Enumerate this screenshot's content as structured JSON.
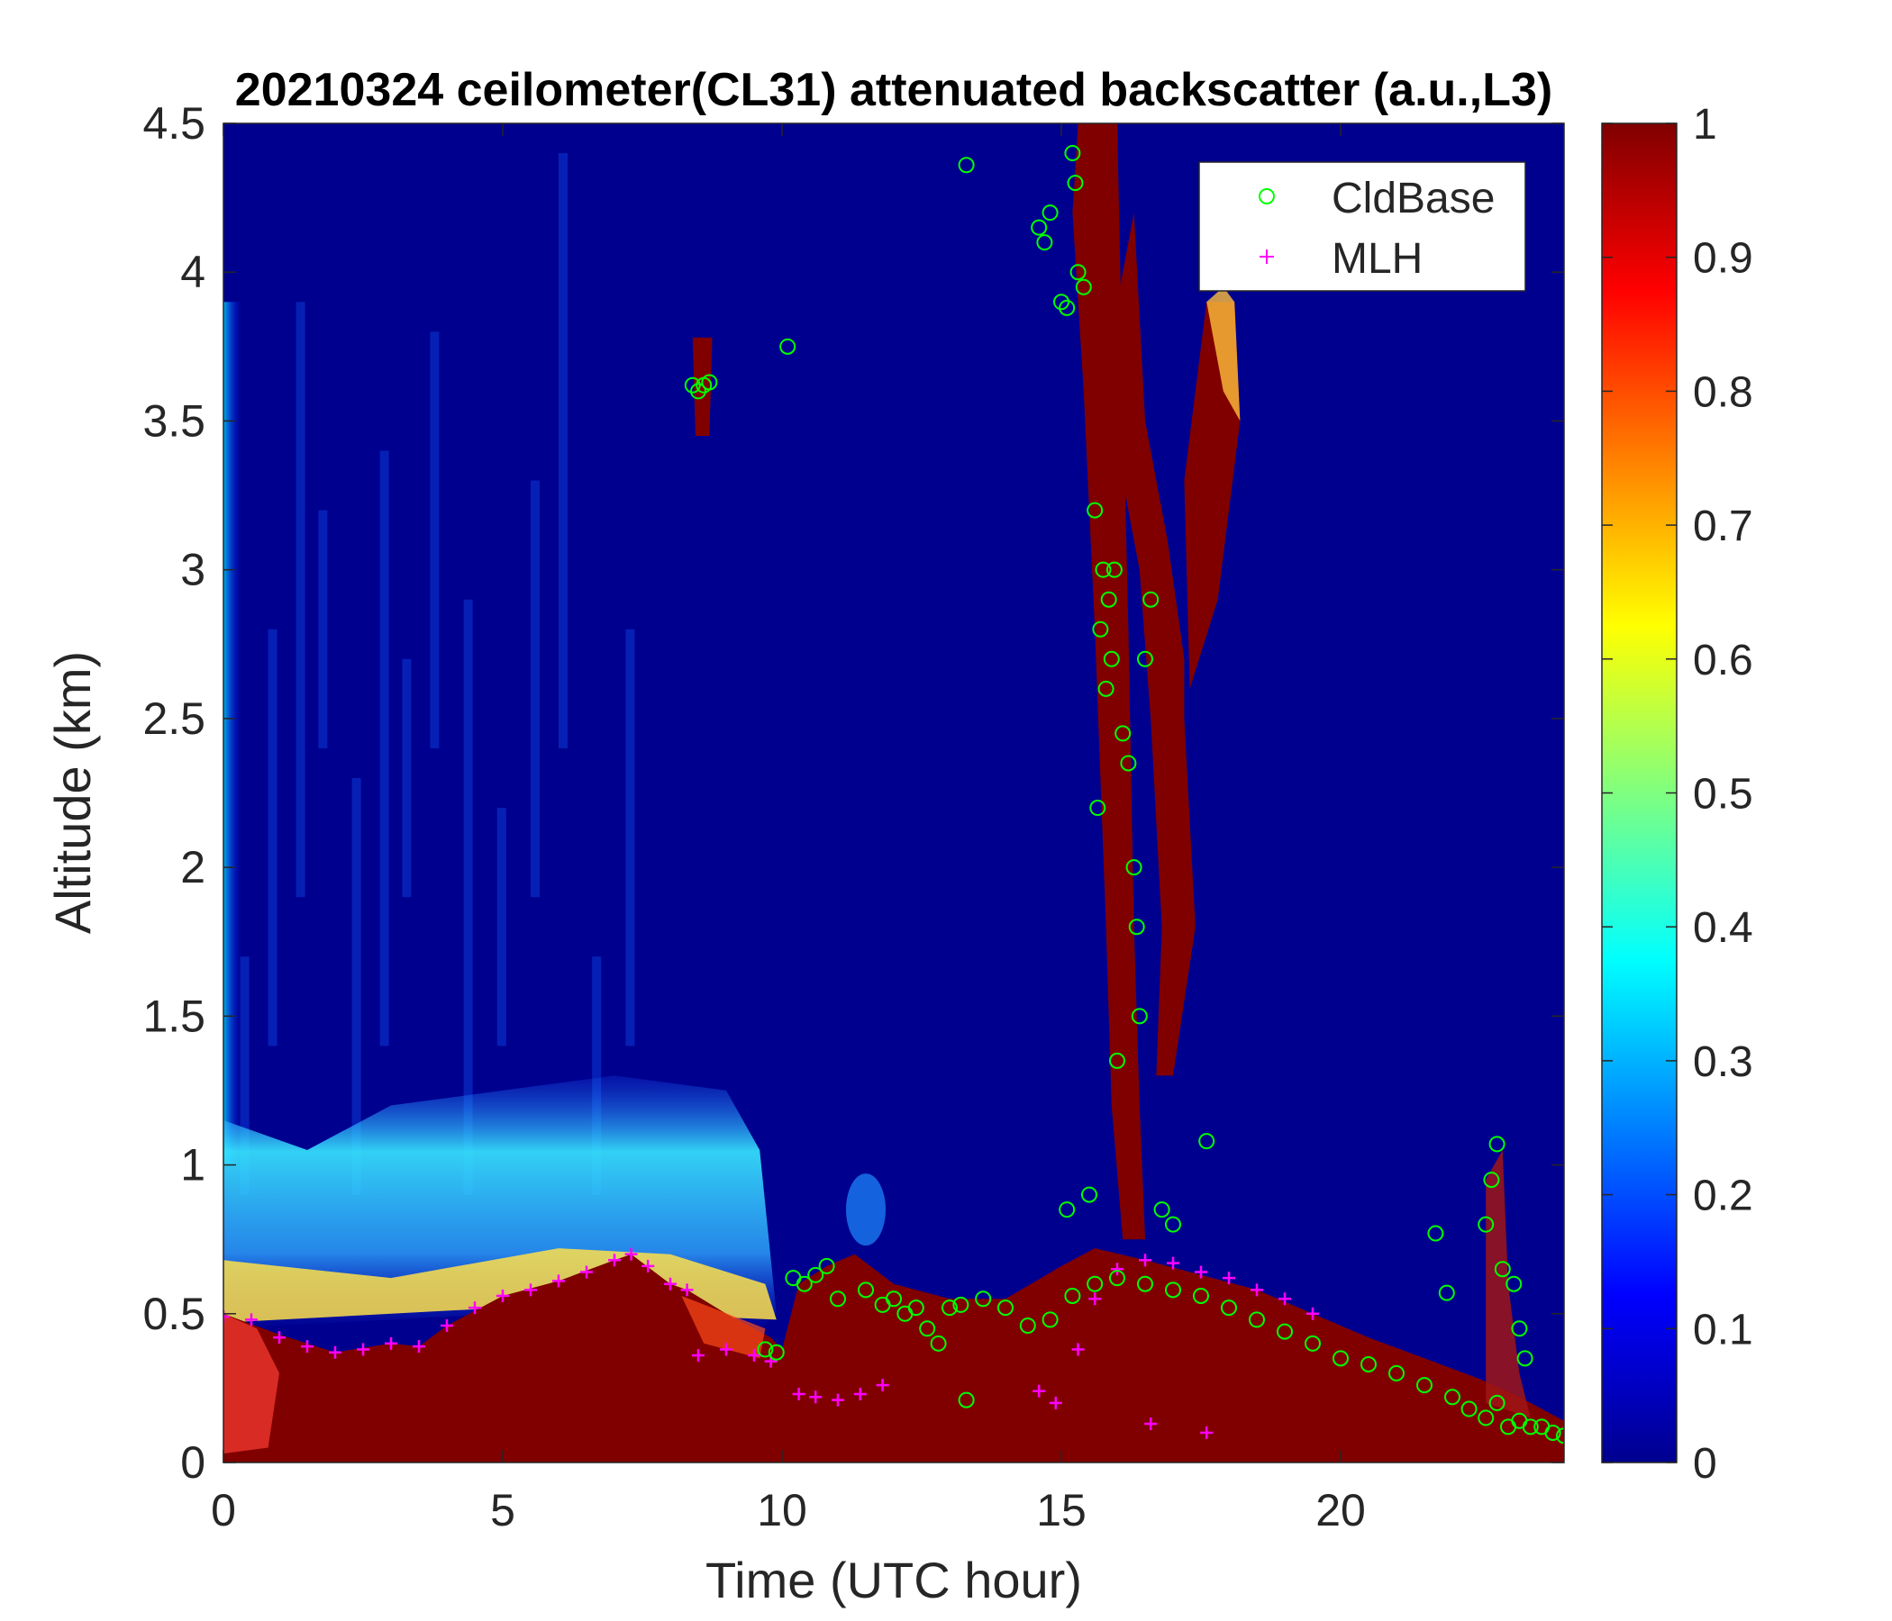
{
  "chart_data": {
    "type": "heatmap",
    "title": "20210324 ceilometer(CL31) attenuated backscatter (a.u.,L3)",
    "xlabel": "Time (UTC hour)",
    "ylabel": "Altitude (km)",
    "xlim": [
      0,
      24
    ],
    "ylim": [
      0,
      4.5
    ],
    "x_ticks": [
      "0",
      "5",
      "10",
      "15",
      "20"
    ],
    "x_tick_values": [
      0,
      5,
      10,
      15,
      20
    ],
    "y_ticks": [
      "0",
      "0.5",
      "1",
      "1.5",
      "2",
      "2.5",
      "3",
      "3.5",
      "4",
      "4.5"
    ],
    "y_tick_values": [
      0,
      0.5,
      1,
      1.5,
      2,
      2.5,
      3,
      3.5,
      4,
      4.5
    ],
    "colorbar": {
      "colormap": "jet",
      "range": [
        0,
        1
      ],
      "ticks": [
        "0",
        "0.1",
        "0.2",
        "0.3",
        "0.4",
        "0.5",
        "0.6",
        "0.7",
        "0.8",
        "0.9",
        "1"
      ],
      "tick_values": [
        0,
        0.1,
        0.2,
        0.3,
        0.4,
        0.5,
        0.6,
        0.7,
        0.8,
        0.9,
        1
      ]
    },
    "grid": false,
    "legend": {
      "placement": "top-right",
      "entries": [
        {
          "label": "CldBase",
          "marker": "circle",
          "color": "#00ff00"
        },
        {
          "label": "MLH",
          "marker": "plus",
          "color": "#ff00ff"
        }
      ]
    },
    "series": [
      {
        "name": "MLH",
        "x": [
          0,
          0.5,
          1,
          1.5,
          2,
          2.5,
          3,
          3.5,
          4,
          4.5,
          5,
          5.5,
          6,
          6.5,
          7,
          7.3,
          7.6,
          8,
          8.3,
          8.5,
          9,
          9.5,
          9.8,
          10.3,
          10.6,
          11.0,
          11.4,
          11.8,
          14.6,
          14.9,
          15.3,
          15.6,
          16.0,
          16.5,
          17.0,
          17.5,
          18.0,
          18.5,
          19.0,
          19.5,
          16.6,
          17.6
        ],
        "y": [
          0.49,
          0.48,
          0.42,
          0.39,
          0.37,
          0.38,
          0.4,
          0.39,
          0.46,
          0.52,
          0.56,
          0.58,
          0.61,
          0.64,
          0.68,
          0.7,
          0.66,
          0.6,
          0.58,
          0.36,
          0.38,
          0.36,
          0.34,
          0.23,
          0.22,
          0.21,
          0.23,
          0.26,
          0.24,
          0.2,
          0.38,
          0.55,
          0.65,
          0.68,
          0.67,
          0.64,
          0.62,
          0.58,
          0.55,
          0.5,
          0.13,
          0.1
        ]
      },
      {
        "name": "CldBase",
        "x": [
          8.4,
          8.5,
          8.6,
          8.7,
          10.1,
          13.3,
          14.6,
          14.7,
          14.8,
          15.0,
          15.1,
          15.2,
          15.25,
          15.3,
          15.4,
          15.6,
          15.65,
          15.7,
          15.75,
          15.8,
          15.85,
          15.9,
          15.95,
          16.0,
          16.1,
          16.2,
          16.3,
          16.35,
          16.4,
          16.5,
          16.6,
          16.8,
          17.0,
          17.6,
          9.7,
          9.9,
          10.2,
          10.4,
          10.6,
          10.8,
          11.0,
          11.5,
          11.8,
          12.0,
          12.2,
          12.4,
          12.6,
          12.8,
          13.0,
          13.2,
          13.6,
          14.0,
          14.4,
          14.8,
          15.2,
          15.6,
          16.0,
          16.5,
          17.0,
          17.5,
          18.0,
          18.5,
          19.0,
          19.5,
          20.0,
          20.5,
          21.0,
          21.5,
          22.0,
          22.3,
          22.6,
          22.8,
          23.0,
          23.2,
          23.4,
          23.6,
          23.8,
          24.0,
          22.6,
          22.7,
          22.8,
          22.9,
          23.1,
          23.2,
          23.3,
          21.7,
          21.9,
          13.3,
          15.1,
          15.5
        ],
        "y": [
          3.62,
          3.6,
          3.62,
          3.63,
          3.75,
          4.36,
          4.15,
          4.1,
          4.2,
          3.9,
          3.88,
          4.4,
          4.3,
          4.0,
          3.95,
          3.2,
          2.2,
          2.8,
          3.0,
          2.6,
          2.9,
          2.7,
          3.0,
          1.35,
          2.45,
          2.35,
          2.0,
          1.8,
          1.5,
          2.7,
          2.9,
          0.85,
          0.8,
          1.08,
          0.38,
          0.37,
          0.62,
          0.6,
          0.63,
          0.66,
          0.55,
          0.58,
          0.53,
          0.55,
          0.5,
          0.52,
          0.45,
          0.4,
          0.52,
          0.53,
          0.55,
          0.52,
          0.46,
          0.48,
          0.56,
          0.6,
          0.62,
          0.6,
          0.58,
          0.56,
          0.52,
          0.48,
          0.44,
          0.4,
          0.35,
          0.33,
          0.3,
          0.26,
          0.22,
          0.18,
          0.15,
          0.2,
          0.12,
          0.14,
          0.12,
          0.12,
          0.1,
          0.09,
          0.8,
          0.95,
          1.07,
          0.65,
          0.6,
          0.45,
          0.35,
          0.77,
          0.57,
          0.21,
          0.85,
          0.9
        ]
      }
    ]
  }
}
